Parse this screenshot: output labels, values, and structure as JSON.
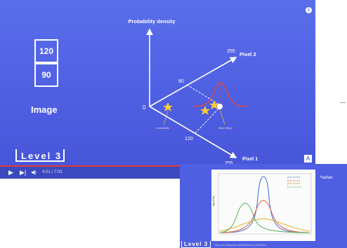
{
  "slide": {
    "info_icon": "i",
    "pixel_values": [
      "120",
      "90"
    ],
    "image_label": "Image",
    "axis_labels": {
      "y": "Probability density",
      "pixel2": "Pixel 2",
      "pixel1": "Pixel 1",
      "origin": "0",
      "pixel2_tick": "90",
      "pixel2_max": "255",
      "pixel1_tick": "120",
      "pixel1_max": "255"
    },
    "annotations": {
      "less_likely": "Less likely",
      "more_likely": "More likely"
    },
    "level_label": "Level 3",
    "logo_icon": "Λ"
  },
  "player": {
    "play_icon": "▶",
    "next_icon": "▶|",
    "volume_icon": "◀)",
    "time": "4:01 / 7:03",
    "progress": 0.9
  },
  "thumbnail": {
    "level_label": "Level 3",
    "variance_text": "*varian",
    "legend": [
      "μ=0, σ²=0.2",
      "μ=0, σ²=1.0",
      "μ=0, σ²=5.0",
      "μ=-2, σ²=0.5"
    ],
    "colors": [
      "#3a6fd8",
      "#e05a3a",
      "#e0b020",
      "#4caf50"
    ],
    "url": "https://en.wikipedia.org/wiki/Normal_distribution"
  },
  "colors": {
    "slide_bg": "#4f5fe2",
    "axis": "#ffffff",
    "curve": "#e0483a",
    "star": "#ffcc33",
    "progress": "#e53935"
  }
}
